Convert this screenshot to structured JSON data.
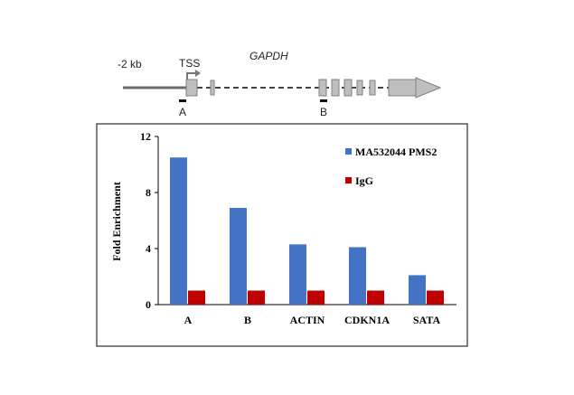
{
  "gene_diagram": {
    "gene_name": "GAPDH",
    "upstream_label": "-2 kb",
    "tss_label": "TSS",
    "region_a_label": "A",
    "region_b_label": "B"
  },
  "chart_data": {
    "type": "bar",
    "title": "",
    "xlabel": "",
    "ylabel": "Fold Enrichment",
    "ylim": [
      0,
      12
    ],
    "yticks": [
      0,
      4,
      8,
      12
    ],
    "categories": [
      "A",
      "B",
      "ACTIN",
      "CDKN1A",
      "SATA"
    ],
    "series": [
      {
        "name": "MA532044 PMS2",
        "color": "#4472c4",
        "values": [
          10.5,
          6.9,
          4.3,
          4.1,
          2.1
        ]
      },
      {
        "name": "IgG",
        "color": "#c00000",
        "values": [
          1.0,
          1.0,
          1.0,
          1.0,
          1.0
        ]
      }
    ],
    "legend_position": "top-right",
    "grid": false
  }
}
